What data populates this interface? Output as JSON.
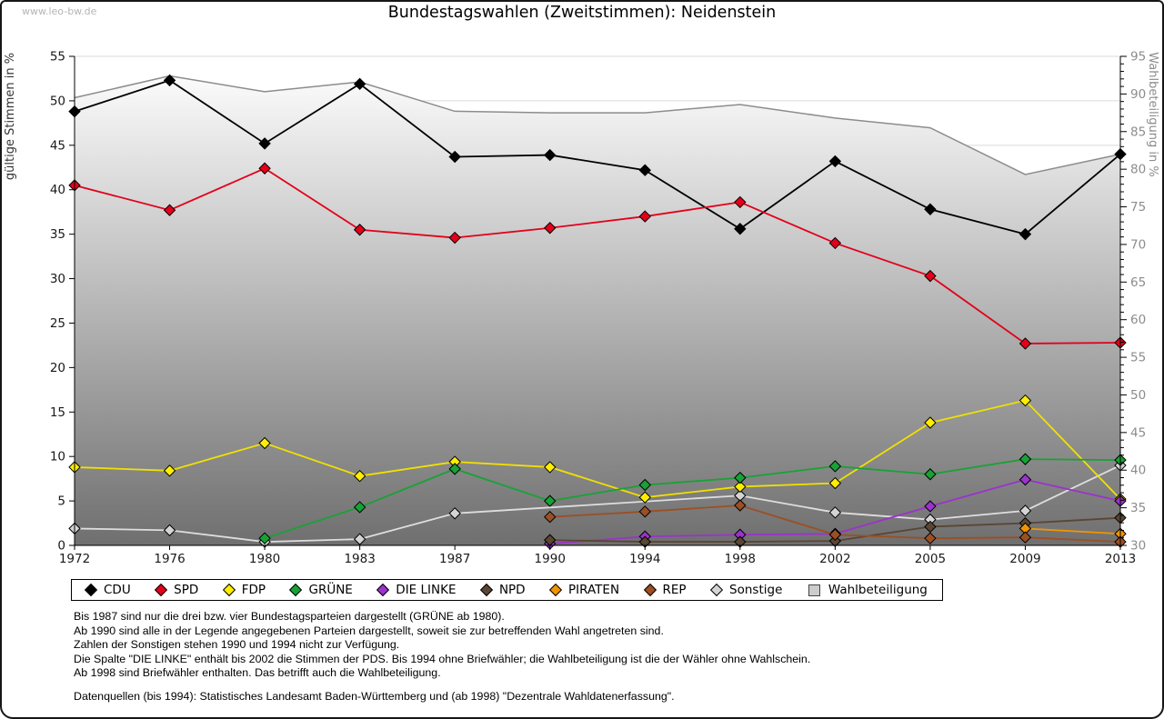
{
  "page": {
    "watermark": "www.leo-bw.de",
    "title": "Bundestagswahlen (Zweitstimmen): Neidenstein"
  },
  "footnotes": {
    "lines": [
      "Bis 1987 sind nur die drei bzw. vier Bundestagsparteien dargestellt (GRÜNE ab 1980).",
      "Ab 1990 sind alle in der Legende angegebenen Parteien dargestellt, soweit sie zur betreffenden Wahl angetreten sind.",
      "Zahlen der Sonstigen stehen 1990 und 1994 nicht zur Verfügung.",
      "Die Spalte \"DIE LINKE\" enthält bis 2002 die Stimmen der PDS. Bis 1994 ohne Briefwähler; die Wahlbeteiligung ist die der Wähler ohne Wahlschein.",
      "Ab 1998 sind Briefwähler enthalten. Das betrifft auch die Wahlbeteiligung."
    ],
    "source": "Datenquellen (bis 1994): Statistisches Landesamt Baden-Württemberg und (ab 1998) \"Dezentrale Wahldatenerfassung\"."
  },
  "chart_data": {
    "type": "line",
    "title": "Bundestagswahlen (Zweitstimmen): Neidenstein",
    "x_categories": [
      1972,
      1976,
      1980,
      1983,
      1987,
      1990,
      1994,
      1998,
      2002,
      2005,
      2009,
      2013
    ],
    "y_axis_left": {
      "label": "gültige Stimmen in %",
      "min": 0,
      "max": 55,
      "tick_step": 5
    },
    "y_axis_right": {
      "label": "Wahlbeteiligung in %",
      "min": 30,
      "max": 95,
      "tick_step": 5,
      "minor_tick_step": 1
    },
    "grid": true,
    "legend_position": "bottom",
    "series": [
      {
        "name": "CDU",
        "marker": "diamond",
        "axis": "left",
        "color": "#000000",
        "values": [
          48.8,
          52.3,
          45.2,
          51.9,
          43.7,
          43.9,
          42.2,
          35.6,
          43.2,
          37.8,
          35.0,
          44.0
        ]
      },
      {
        "name": "SPD",
        "marker": "diamond",
        "axis": "left",
        "color": "#e2001a",
        "values": [
          40.5,
          37.7,
          42.4,
          35.5,
          34.6,
          35.7,
          37.0,
          38.6,
          34.0,
          30.3,
          22.7,
          22.8
        ]
      },
      {
        "name": "FDP",
        "marker": "diamond",
        "axis": "left",
        "color": "#ffee00",
        "line_color": "#f0e003",
        "values": [
          8.8,
          8.4,
          11.5,
          7.8,
          9.4,
          8.8,
          5.4,
          6.6,
          7.0,
          13.8,
          16.3,
          5.2
        ]
      },
      {
        "name": "GRÜNE",
        "marker": "diamond",
        "axis": "left",
        "color": "#18a236",
        "values": [
          null,
          null,
          0.8,
          4.3,
          8.6,
          5.0,
          6.8,
          7.6,
          8.9,
          8.0,
          9.7,
          9.6
        ]
      },
      {
        "name": "DIE LINKE",
        "marker": "diamond",
        "axis": "left",
        "color": "#9b33cc",
        "values": [
          null,
          null,
          null,
          null,
          null,
          0.2,
          1.0,
          1.2,
          1.3,
          4.4,
          7.4,
          5.0
        ]
      },
      {
        "name": "NPD",
        "marker": "diamond",
        "axis": "left",
        "color": "#5a4633",
        "values": [
          null,
          null,
          null,
          null,
          null,
          0.6,
          0.4,
          0.4,
          0.5,
          2.1,
          2.5,
          3.1
        ]
      },
      {
        "name": "PIRATEN",
        "marker": "diamond",
        "axis": "left",
        "color": "#f29400",
        "values": [
          null,
          null,
          null,
          null,
          null,
          null,
          null,
          null,
          null,
          null,
          1.9,
          1.3
        ]
      },
      {
        "name": "REP",
        "marker": "diamond",
        "axis": "left",
        "color": "#9c4f24",
        "values": [
          null,
          null,
          null,
          null,
          null,
          3.2,
          3.8,
          4.5,
          1.2,
          0.8,
          0.9,
          0.4
        ]
      },
      {
        "name": "Sonstige",
        "marker": "diamond",
        "axis": "left",
        "color": "#d4d4d4",
        "line_color": "#dedede",
        "values": [
          1.9,
          1.7,
          0.4,
          0.7,
          3.6,
          null,
          null,
          5.6,
          3.7,
          2.9,
          3.9,
          9.0
        ]
      },
      {
        "name": "Wahlbeteiligung",
        "marker": "square",
        "type": "area",
        "axis": "right",
        "color": "#cccccc",
        "line_color": "#8c8c8c",
        "area_gradient_top": "#fcfcfc",
        "area_gradient_bottom": "#6f6f6f",
        "values": [
          89.5,
          92.4,
          90.3,
          91.6,
          87.7,
          87.5,
          87.5,
          88.6,
          86.8,
          85.5,
          79.3,
          82.0
        ]
      }
    ],
    "draw_order": [
      "Wahlbeteiligung",
      "Sonstige",
      "CDU",
      "SPD",
      "FDP",
      "GRÜNE",
      "DIE LINKE",
      "NPD",
      "PIRATEN",
      "REP"
    ],
    "grid_color": "#d9d9d9",
    "axis_color": "#000000",
    "right_axis_text_color": "#8c8c8c"
  }
}
